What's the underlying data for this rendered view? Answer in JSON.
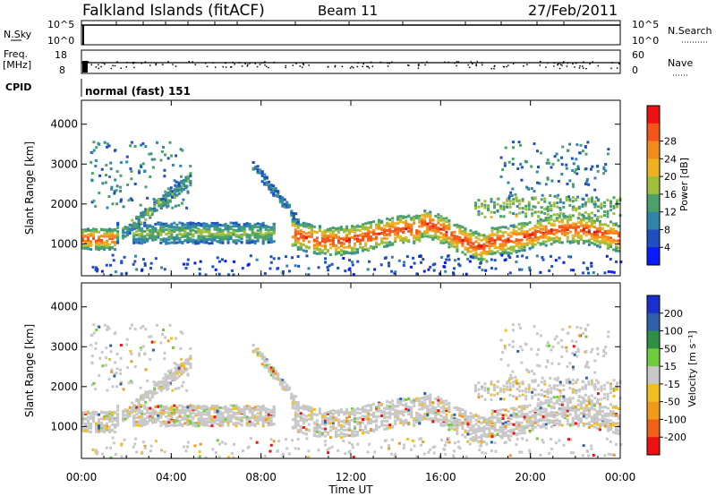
{
  "header": {
    "station": "Falkland Islands (fitACF)",
    "beam": "Beam 11",
    "date": "27/Feb/2011"
  },
  "panels": {
    "nsky": {
      "label": "N.Sky",
      "ticks_left": [
        "10^5",
        "10^0"
      ],
      "ticks_right": [
        "10^5",
        "10^0"
      ],
      "right_label": "N.Search"
    },
    "freq": {
      "label": "Freq.",
      "unit": "[MHz]",
      "ticks_left": [
        "18",
        "8"
      ],
      "ticks_right": [
        "60",
        "0"
      ],
      "right_label": "Nave"
    },
    "cpid": {
      "label": "CPID",
      "value": "normal (fast) 151"
    }
  },
  "chart_data": [
    {
      "type": "heatmap",
      "name": "power",
      "ylabel": "Slant Range [km]",
      "xlabel": "Time UT",
      "x_ticks": [
        "00:00",
        "04:00",
        "08:00",
        "12:00",
        "16:00",
        "20:00",
        "00:00"
      ],
      "y_ticks": [
        "1000",
        "2000",
        "3000",
        "4000"
      ],
      "ylim": [
        200,
        4600
      ],
      "colorbar_label": "Power [dB]",
      "colorbar_ticks": [
        "4",
        "8",
        "12",
        "16",
        "20",
        "24",
        "28"
      ],
      "colorbar_colors": [
        "#0a1aff",
        "#1f4fc0",
        "#2f86a8",
        "#4ca06a",
        "#9fbe3a",
        "#f0b020",
        "#f28a1c",
        "#f4561a",
        "#ee1111"
      ]
    },
    {
      "type": "heatmap",
      "name": "velocity",
      "ylabel": "Slant Range [km]",
      "xlabel": "Time UT",
      "x_ticks": [
        "00:00",
        "04:00",
        "08:00",
        "12:00",
        "16:00",
        "20:00",
        "00:00"
      ],
      "y_ticks": [
        "1000",
        "2000",
        "3000",
        "4000"
      ],
      "ylim": [
        200,
        4600
      ],
      "colorbar_label": "Velocity [m s⁻¹]",
      "colorbar_ticks": [
        "200",
        "100",
        "50",
        "15",
        "-15",
        "-50",
        "-100",
        "-200"
      ],
      "colorbar_colors": [
        "#1a2fd0",
        "#2f5fa8",
        "#2f8f48",
        "#6fcc3a",
        "#c8c8c8",
        "#f0c020",
        "#f09a1a",
        "#f06018",
        "#ee1111"
      ]
    }
  ],
  "time_axis_label": "Time UT"
}
